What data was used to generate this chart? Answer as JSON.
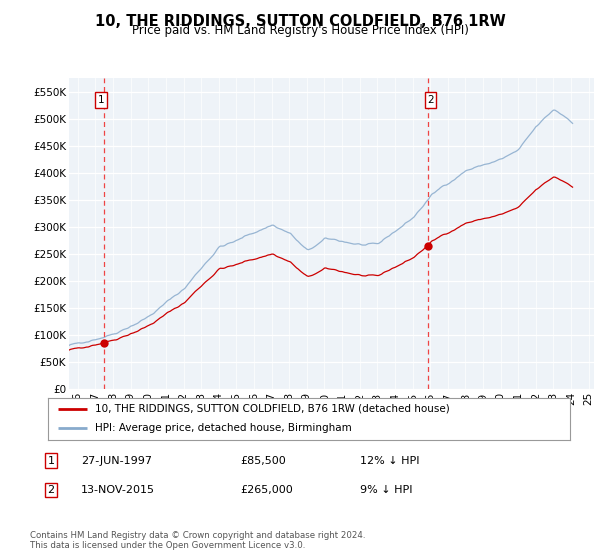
{
  "title": "10, THE RIDDINGS, SUTTON COLDFIELD, B76 1RW",
  "subtitle": "Price paid vs. HM Land Registry's House Price Index (HPI)",
  "ylim": [
    0,
    575000
  ],
  "yticks": [
    0,
    50000,
    100000,
    150000,
    200000,
    250000,
    300000,
    350000,
    400000,
    450000,
    500000,
    550000
  ],
  "ytick_labels": [
    "£0",
    "£50K",
    "£100K",
    "£150K",
    "£200K",
    "£250K",
    "£300K",
    "£350K",
    "£400K",
    "£450K",
    "£500K",
    "£550K"
  ],
  "sale1_year": 1997.48,
  "sale1_price": 85500,
  "sale2_year": 2015.87,
  "sale2_price": 265000,
  "line_color_property": "#cc0000",
  "line_color_hpi": "#88aacc",
  "plot_bg_color": "#eef3f8",
  "grid_color": "#ffffff",
  "legend_entry1": "10, THE RIDDINGS, SUTTON COLDFIELD, B76 1RW (detached house)",
  "legend_entry2": "HPI: Average price, detached house, Birmingham",
  "table_row1": [
    "1",
    "27-JUN-1997",
    "£85,500",
    "12% ↓ HPI"
  ],
  "table_row2": [
    "2",
    "13-NOV-2015",
    "£265,000",
    "9% ↓ HPI"
  ],
  "footer": "Contains HM Land Registry data © Crown copyright and database right 2024.\nThis data is licensed under the Open Government Licence v3.0.",
  "xmin": 1995.5,
  "xmax": 2025.3
}
